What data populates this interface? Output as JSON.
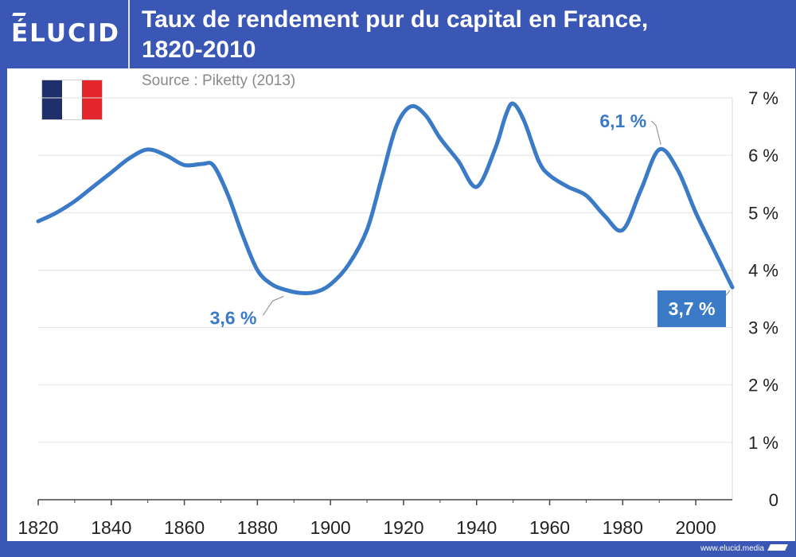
{
  "header": {
    "brand": "ÉLUCID",
    "title_line1": "Taux de rendement pur du capital en France,",
    "title_line2": "1820-2010",
    "source": "Source : Piketty (2013)"
  },
  "footer": {
    "site": "www.elucid.media"
  },
  "colors": {
    "brand_blue": "#3b57b6",
    "line": "#3a7ac6",
    "label_box": "#3a7ac6",
    "flag": [
      "#1f2f6b",
      "#ffffff",
      "#e3262b"
    ]
  },
  "icons": {
    "flag": "france-flag-icon"
  },
  "chart_data": {
    "type": "line",
    "title": "Taux de rendement pur du capital en France, 1820-2010",
    "xlabel": "",
    "ylabel": "",
    "xlim": [
      1820,
      2010
    ],
    "ylim": [
      0,
      7
    ],
    "x_ticks": [
      1820,
      1840,
      1860,
      1880,
      1900,
      1920,
      1940,
      1960,
      1980,
      2000
    ],
    "x_tick_labels": [
      "1820",
      "1840",
      "1860",
      "1880",
      "1900",
      "1920",
      "1940",
      "1960",
      "1980",
      "2000"
    ],
    "y_ticks": [
      0,
      1,
      2,
      3,
      4,
      5,
      6,
      7
    ],
    "y_tick_labels": [
      "0",
      "1 %",
      "2 %",
      "3 %",
      "4 %",
      "5 %",
      "6 %",
      "7 %"
    ],
    "y_axis_side": "right",
    "grid": true,
    "legend": "none",
    "series": [
      {
        "x": [
          1820,
          1825,
          1830,
          1835,
          1840,
          1845,
          1850,
          1855,
          1860,
          1865,
          1868,
          1872,
          1876,
          1880,
          1884,
          1888,
          1892,
          1896,
          1900,
          1905,
          1910,
          1914,
          1918,
          1922,
          1926,
          1930,
          1935,
          1940,
          1945,
          1948,
          1950,
          1953,
          1957,
          1960,
          1965,
          1970,
          1975,
          1980,
          1985,
          1990,
          1995,
          2000,
          2005,
          2010
        ],
        "y": [
          4.85,
          5.0,
          5.2,
          5.45,
          5.7,
          5.95,
          6.1,
          6.0,
          5.83,
          5.85,
          5.82,
          5.3,
          4.6,
          4.0,
          3.75,
          3.65,
          3.6,
          3.62,
          3.75,
          4.1,
          4.7,
          5.6,
          6.5,
          6.85,
          6.7,
          6.3,
          5.9,
          5.45,
          6.1,
          6.7,
          6.9,
          6.6,
          5.9,
          5.65,
          5.45,
          5.3,
          4.95,
          4.7,
          5.4,
          6.1,
          5.75,
          5.0,
          4.35,
          3.7
        ]
      }
    ],
    "annotations": [
      {
        "text": "3,6 %",
        "x": 1892,
        "y": 3.6,
        "style": "text"
      },
      {
        "text": "6,1 %",
        "x": 1990,
        "y": 6.1,
        "style": "text"
      },
      {
        "text": "3,7 %",
        "x": 2010,
        "y": 3.7,
        "style": "box"
      }
    ]
  }
}
